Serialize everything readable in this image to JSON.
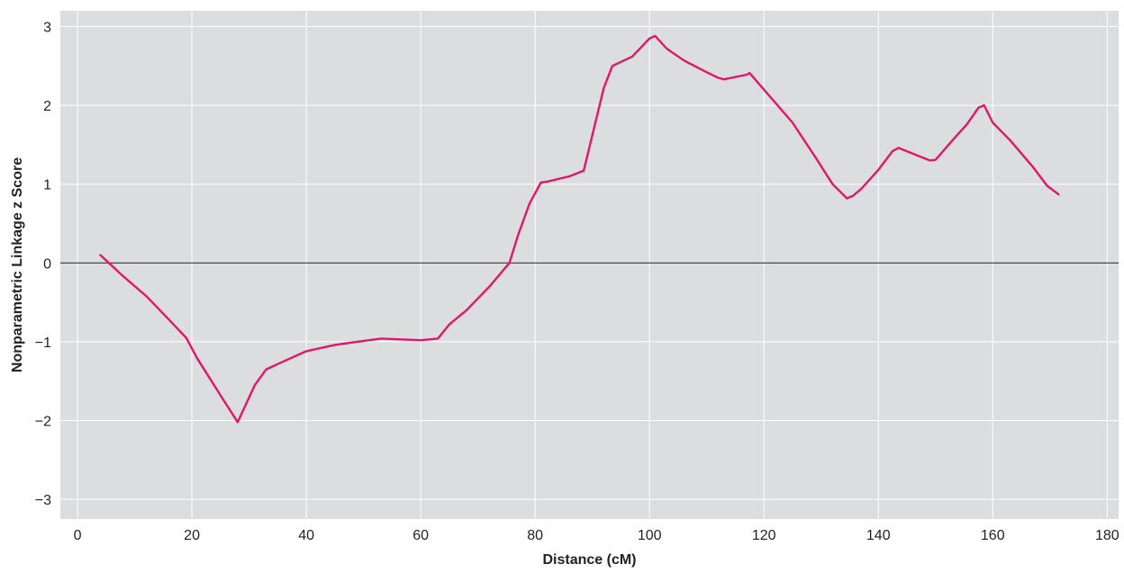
{
  "chart_data": {
    "type": "line",
    "title": "",
    "xlabel": "Distance (cM)",
    "ylabel": "Nonparametric Linkage z Score",
    "xlim": [
      -3,
      182
    ],
    "ylim": [
      -3.25,
      3.2
    ],
    "xticks": [
      0,
      20,
      40,
      60,
      80,
      100,
      120,
      140,
      160,
      180
    ],
    "xtick_labels": [
      "0",
      "20",
      "40",
      "60",
      "80",
      "100",
      "120",
      "140",
      "160",
      "180"
    ],
    "yticks": [
      3,
      2,
      1,
      0,
      -1,
      -2,
      -3
    ],
    "ytick_labels": [
      "3",
      "2",
      "1",
      "0",
      "−1",
      "−2",
      "−3"
    ],
    "grid": true,
    "zero_line": true,
    "colors": {
      "background": "#dcdddf",
      "grid": "#ffffff",
      "line": "#e0186c",
      "zero_line": "#333333"
    },
    "series": [
      {
        "x": [
          4,
          8,
          12,
          16,
          19,
          21,
          23,
          25,
          28,
          31,
          33,
          36,
          40,
          45,
          53,
          60,
          63,
          65,
          68,
          72,
          75.5,
          77,
          79,
          81,
          82,
          86,
          88.5,
          92,
          93.5,
          97,
          100,
          101,
          103,
          106,
          110,
          112,
          113,
          117,
          117.5,
          120,
          125,
          129,
          132,
          134.5,
          135.5,
          137,
          140,
          142.5,
          143.5,
          149,
          150,
          153,
          155.5,
          157.5,
          158.5,
          160,
          163,
          167,
          169.5,
          171.5
        ],
        "y": [
          0.1,
          -0.17,
          -0.42,
          -0.72,
          -0.95,
          -1.22,
          -1.45,
          -1.68,
          -2.02,
          -1.55,
          -1.35,
          -1.25,
          -1.12,
          -1.04,
          -0.96,
          -0.98,
          -0.96,
          -0.78,
          -0.6,
          -0.3,
          0.0,
          0.35,
          0.75,
          1.02,
          1.03,
          1.1,
          1.17,
          2.22,
          2.5,
          2.62,
          2.85,
          2.88,
          2.72,
          2.57,
          2.42,
          2.35,
          2.33,
          2.39,
          2.41,
          2.2,
          1.78,
          1.34,
          1.0,
          0.82,
          0.85,
          0.94,
          1.18,
          1.42,
          1.46,
          1.3,
          1.31,
          1.56,
          1.76,
          1.97,
          2.0,
          1.78,
          1.56,
          1.22,
          0.98,
          0.87
        ]
      }
    ]
  }
}
